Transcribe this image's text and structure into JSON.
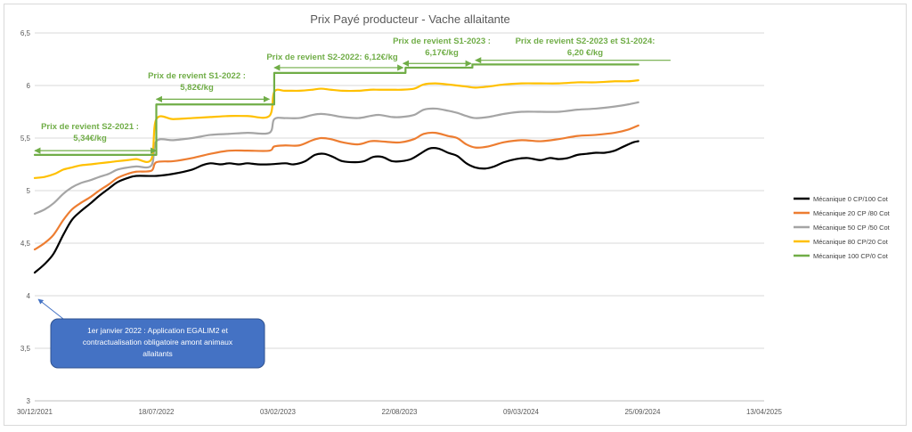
{
  "chart_data": {
    "type": "line",
    "title": "Prix Payé producteur - Vache allaitante",
    "xlabel": "",
    "ylabel": "",
    "ylim": [
      3,
      6.5
    ],
    "yticks": [
      "6,5",
      "6",
      "5,5",
      "5",
      "4,5",
      "4",
      "3,5",
      "3"
    ],
    "xlim": [
      "2021-12-30",
      "2025-04-13"
    ],
    "xticks": [
      "30/12/2021",
      "18/07/2022",
      "03/02/2023",
      "22/08/2023",
      "09/03/2024",
      "25/09/2024",
      "13/04/2025"
    ],
    "grid": "horizontal",
    "legend_position": "right",
    "series": [
      {
        "name": "Mécanique 0 CP/100 Cot",
        "color": "#000000",
        "shape": "smooth",
        "points": [
          [
            "2021-12-30",
            4.22
          ],
          [
            "2022-01-15",
            4.3
          ],
          [
            "2022-01-30",
            4.4
          ],
          [
            "2022-02-15",
            4.58
          ],
          [
            "2022-03-01",
            4.72
          ],
          [
            "2022-03-15",
            4.8
          ],
          [
            "2022-04-01",
            4.88
          ],
          [
            "2022-04-15",
            4.95
          ],
          [
            "2022-05-01",
            5.02
          ],
          [
            "2022-05-15",
            5.08
          ],
          [
            "2022-06-01",
            5.12
          ],
          [
            "2022-06-15",
            5.14
          ],
          [
            "2022-07-18",
            5.14
          ],
          [
            "2022-08-15",
            5.16
          ],
          [
            "2022-09-15",
            5.2
          ],
          [
            "2022-10-01",
            5.24
          ],
          [
            "2022-10-15",
            5.26
          ],
          [
            "2022-11-01",
            5.25
          ],
          [
            "2022-11-15",
            5.26
          ],
          [
            "2022-12-01",
            5.25
          ],
          [
            "2022-12-15",
            5.26
          ],
          [
            "2023-01-01",
            5.25
          ],
          [
            "2023-01-20",
            5.25
          ],
          [
            "2023-02-15",
            5.26
          ],
          [
            "2023-03-01",
            5.25
          ],
          [
            "2023-03-20",
            5.28
          ],
          [
            "2023-04-05",
            5.34
          ],
          [
            "2023-04-20",
            5.35
          ],
          [
            "2023-05-05",
            5.32
          ],
          [
            "2023-05-20",
            5.28
          ],
          [
            "2023-06-10",
            5.27
          ],
          [
            "2023-06-25",
            5.28
          ],
          [
            "2023-07-10",
            5.32
          ],
          [
            "2023-07-25",
            5.32
          ],
          [
            "2023-08-10",
            5.28
          ],
          [
            "2023-08-25",
            5.28
          ],
          [
            "2023-09-10",
            5.3
          ],
          [
            "2023-09-25",
            5.35
          ],
          [
            "2023-10-10",
            5.4
          ],
          [
            "2023-10-25",
            5.4
          ],
          [
            "2023-11-10",
            5.36
          ],
          [
            "2023-11-25",
            5.33
          ],
          [
            "2023-12-10",
            5.26
          ],
          [
            "2023-12-25",
            5.22
          ],
          [
            "2024-01-10",
            5.21
          ],
          [
            "2024-01-25",
            5.23
          ],
          [
            "2024-02-10",
            5.27
          ],
          [
            "2024-03-01",
            5.3
          ],
          [
            "2024-03-20",
            5.31
          ],
          [
            "2024-04-10",
            5.29
          ],
          [
            "2024-04-25",
            5.31
          ],
          [
            "2024-05-10",
            5.3
          ],
          [
            "2024-05-25",
            5.31
          ],
          [
            "2024-06-10",
            5.34
          ],
          [
            "2024-06-25",
            5.35
          ],
          [
            "2024-07-10",
            5.36
          ],
          [
            "2024-07-25",
            5.36
          ],
          [
            "2024-08-10",
            5.38
          ],
          [
            "2024-08-25",
            5.42
          ],
          [
            "2024-09-10",
            5.46
          ],
          [
            "2024-09-18",
            5.47
          ]
        ]
      },
      {
        "name": "Mécanique 20 CP /80 Cot",
        "color": "#ed7d31",
        "shape": "smooth",
        "points": [
          [
            "2021-12-30",
            4.44
          ],
          [
            "2022-01-15",
            4.5
          ],
          [
            "2022-01-30",
            4.58
          ],
          [
            "2022-02-15",
            4.72
          ],
          [
            "2022-03-01",
            4.82
          ],
          [
            "2022-03-15",
            4.88
          ],
          [
            "2022-04-01",
            4.94
          ],
          [
            "2022-04-15",
            5.0
          ],
          [
            "2022-05-01",
            5.06
          ],
          [
            "2022-05-15",
            5.12
          ],
          [
            "2022-06-01",
            5.16
          ],
          [
            "2022-06-15",
            5.18
          ],
          [
            "2022-07-10",
            5.19
          ],
          [
            "2022-07-18",
            5.27
          ],
          [
            "2022-08-15",
            5.28
          ],
          [
            "2022-09-15",
            5.31
          ],
          [
            "2022-10-15",
            5.35
          ],
          [
            "2022-11-15",
            5.38
          ],
          [
            "2022-12-15",
            5.38
          ],
          [
            "2023-01-20",
            5.38
          ],
          [
            "2023-01-28",
            5.42
          ],
          [
            "2023-02-15",
            5.43
          ],
          [
            "2023-03-10",
            5.43
          ],
          [
            "2023-04-01",
            5.48
          ],
          [
            "2023-04-15",
            5.5
          ],
          [
            "2023-05-01",
            5.49
          ],
          [
            "2023-05-20",
            5.46
          ],
          [
            "2023-06-15",
            5.44
          ],
          [
            "2023-07-05",
            5.47
          ],
          [
            "2023-07-20",
            5.47
          ],
          [
            "2023-08-10",
            5.46
          ],
          [
            "2023-08-25",
            5.46
          ],
          [
            "2023-09-15",
            5.49
          ],
          [
            "2023-10-01",
            5.54
          ],
          [
            "2023-10-20",
            5.55
          ],
          [
            "2023-11-10",
            5.52
          ],
          [
            "2023-11-25",
            5.5
          ],
          [
            "2023-12-10",
            5.44
          ],
          [
            "2023-12-25",
            5.41
          ],
          [
            "2024-01-15",
            5.42
          ],
          [
            "2024-02-10",
            5.46
          ],
          [
            "2024-03-10",
            5.48
          ],
          [
            "2024-04-10",
            5.47
          ],
          [
            "2024-05-10",
            5.49
          ],
          [
            "2024-06-10",
            5.52
          ],
          [
            "2024-07-10",
            5.53
          ],
          [
            "2024-08-10",
            5.55
          ],
          [
            "2024-09-01",
            5.58
          ],
          [
            "2024-09-18",
            5.62
          ]
        ]
      },
      {
        "name": "Mécanique 50 CP /50 Cot",
        "color": "#a5a5a5",
        "shape": "smooth",
        "points": [
          [
            "2021-12-30",
            4.78
          ],
          [
            "2022-01-15",
            4.82
          ],
          [
            "2022-01-30",
            4.88
          ],
          [
            "2022-02-15",
            4.97
          ],
          [
            "2022-03-01",
            5.03
          ],
          [
            "2022-03-15",
            5.07
          ],
          [
            "2022-04-01",
            5.1
          ],
          [
            "2022-04-15",
            5.13
          ],
          [
            "2022-05-01",
            5.16
          ],
          [
            "2022-05-15",
            5.2
          ],
          [
            "2022-06-01",
            5.22
          ],
          [
            "2022-06-15",
            5.23
          ],
          [
            "2022-07-10",
            5.24
          ],
          [
            "2022-07-18",
            5.47
          ],
          [
            "2022-08-15",
            5.48
          ],
          [
            "2022-09-15",
            5.5
          ],
          [
            "2022-10-15",
            5.53
          ],
          [
            "2022-11-15",
            5.54
          ],
          [
            "2022-12-15",
            5.55
          ],
          [
            "2023-01-20",
            5.55
          ],
          [
            "2023-01-28",
            5.68
          ],
          [
            "2023-02-15",
            5.69
          ],
          [
            "2023-03-10",
            5.69
          ],
          [
            "2023-04-01",
            5.72
          ],
          [
            "2023-04-15",
            5.73
          ],
          [
            "2023-05-01",
            5.72
          ],
          [
            "2023-05-20",
            5.7
          ],
          [
            "2023-06-15",
            5.69
          ],
          [
            "2023-07-05",
            5.71
          ],
          [
            "2023-07-20",
            5.72
          ],
          [
            "2023-08-10",
            5.7
          ],
          [
            "2023-08-25",
            5.7
          ],
          [
            "2023-09-15",
            5.72
          ],
          [
            "2023-10-01",
            5.77
          ],
          [
            "2023-10-20",
            5.78
          ],
          [
            "2023-11-10",
            5.76
          ],
          [
            "2023-11-25",
            5.74
          ],
          [
            "2023-12-10",
            5.71
          ],
          [
            "2023-12-25",
            5.69
          ],
          [
            "2024-01-15",
            5.7
          ],
          [
            "2024-02-10",
            5.73
          ],
          [
            "2024-03-10",
            5.75
          ],
          [
            "2024-04-10",
            5.75
          ],
          [
            "2024-05-10",
            5.75
          ],
          [
            "2024-06-10",
            5.77
          ],
          [
            "2024-07-10",
            5.78
          ],
          [
            "2024-08-10",
            5.8
          ],
          [
            "2024-09-01",
            5.82
          ],
          [
            "2024-09-18",
            5.84
          ]
        ]
      },
      {
        "name": "Mécanique 80 CP/20 Cot",
        "color": "#ffc000",
        "shape": "smooth",
        "points": [
          [
            "2021-12-30",
            5.12
          ],
          [
            "2022-01-15",
            5.13
          ],
          [
            "2022-02-01",
            5.16
          ],
          [
            "2022-02-15",
            5.2
          ],
          [
            "2022-03-01",
            5.22
          ],
          [
            "2022-03-15",
            5.24
          ],
          [
            "2022-04-01",
            5.25
          ],
          [
            "2022-04-15",
            5.26
          ],
          [
            "2022-05-01",
            5.27
          ],
          [
            "2022-05-15",
            5.28
          ],
          [
            "2022-06-01",
            5.29
          ],
          [
            "2022-06-15",
            5.3
          ],
          [
            "2022-07-10",
            5.3
          ],
          [
            "2022-07-18",
            5.68
          ],
          [
            "2022-08-15",
            5.68
          ],
          [
            "2022-09-15",
            5.69
          ],
          [
            "2022-10-15",
            5.7
          ],
          [
            "2022-11-15",
            5.71
          ],
          [
            "2022-12-15",
            5.71
          ],
          [
            "2023-01-20",
            5.71
          ],
          [
            "2023-01-28",
            5.94
          ],
          [
            "2023-02-15",
            5.95
          ],
          [
            "2023-03-10",
            5.95
          ],
          [
            "2023-04-01",
            5.96
          ],
          [
            "2023-04-15",
            5.97
          ],
          [
            "2023-05-01",
            5.96
          ],
          [
            "2023-05-20",
            5.95
          ],
          [
            "2023-06-15",
            5.95
          ],
          [
            "2023-07-05",
            5.96
          ],
          [
            "2023-07-20",
            5.96
          ],
          [
            "2023-08-10",
            5.96
          ],
          [
            "2023-08-25",
            5.96
          ],
          [
            "2023-09-15",
            5.97
          ],
          [
            "2023-10-01",
            6.01
          ],
          [
            "2023-10-20",
            6.02
          ],
          [
            "2023-11-10",
            6.01
          ],
          [
            "2023-11-25",
            6.0
          ],
          [
            "2023-12-10",
            5.99
          ],
          [
            "2023-12-25",
            5.98
          ],
          [
            "2024-01-15",
            5.99
          ],
          [
            "2024-02-10",
            6.01
          ],
          [
            "2024-03-10",
            6.02
          ],
          [
            "2024-04-10",
            6.02
          ],
          [
            "2024-05-10",
            6.02
          ],
          [
            "2024-06-10",
            6.03
          ],
          [
            "2024-07-10",
            6.03
          ],
          [
            "2024-08-10",
            6.04
          ],
          [
            "2024-09-01",
            6.04
          ],
          [
            "2024-09-18",
            6.05
          ]
        ]
      },
      {
        "name": "Mécanique 100 CP/0 Cot",
        "color": "#70ad47",
        "shape": "step",
        "points": [
          [
            "2021-12-30",
            5.34
          ],
          [
            "2022-07-18",
            5.34
          ],
          [
            "2022-07-18",
            5.82
          ],
          [
            "2023-01-28",
            5.82
          ],
          [
            "2023-01-28",
            6.12
          ],
          [
            "2023-09-01",
            6.12
          ],
          [
            "2023-09-01",
            6.17
          ],
          [
            "2023-12-20",
            6.17
          ],
          [
            "2023-12-20",
            6.2
          ],
          [
            "2024-09-18",
            6.2
          ]
        ]
      }
    ],
    "annotations": [
      {
        "lines": [
          "Prix de revient S2-2021 :",
          "5,34€/kg"
        ],
        "arrow": {
          "from": "2021-12-30",
          "to": "2022-07-18",
          "y": 5.38
        }
      },
      {
        "lines": [
          "Prix de revient S1-2022 :",
          "5,82€/kg"
        ],
        "arrow": {
          "from": "2022-07-18",
          "to": "2023-01-20",
          "y": 5.87
        }
      },
      {
        "lines": [
          "Prix de revient S2-2022:  6,12€/kg"
        ],
        "arrow": {
          "from": "2023-01-28",
          "to": "2023-08-28",
          "y": 6.17
        }
      },
      {
        "lines": [
          "Prix de revient S1-2023 :",
          "6,17€/kg"
        ],
        "arrow": {
          "from": "2023-08-28",
          "to": "2023-12-18",
          "y": 6.21
        }
      },
      {
        "lines": [
          "Prix de revient S2-2023  et S1-2024:",
          "6,20 €/kg"
        ],
        "arrow": {
          "from": "2024-11-10",
          "to": "2023-12-25",
          "y": 6.24
        }
      }
    ],
    "callout": {
      "text": [
        "1er janvier 2022 : Application EGALIM2 et",
        "contractualisation obligatoire amont animaux",
        "allaitants"
      ],
      "fill": "#4472c4",
      "arrow_to": {
        "x": "2021-12-30",
        "y": 4.0
      }
    }
  }
}
